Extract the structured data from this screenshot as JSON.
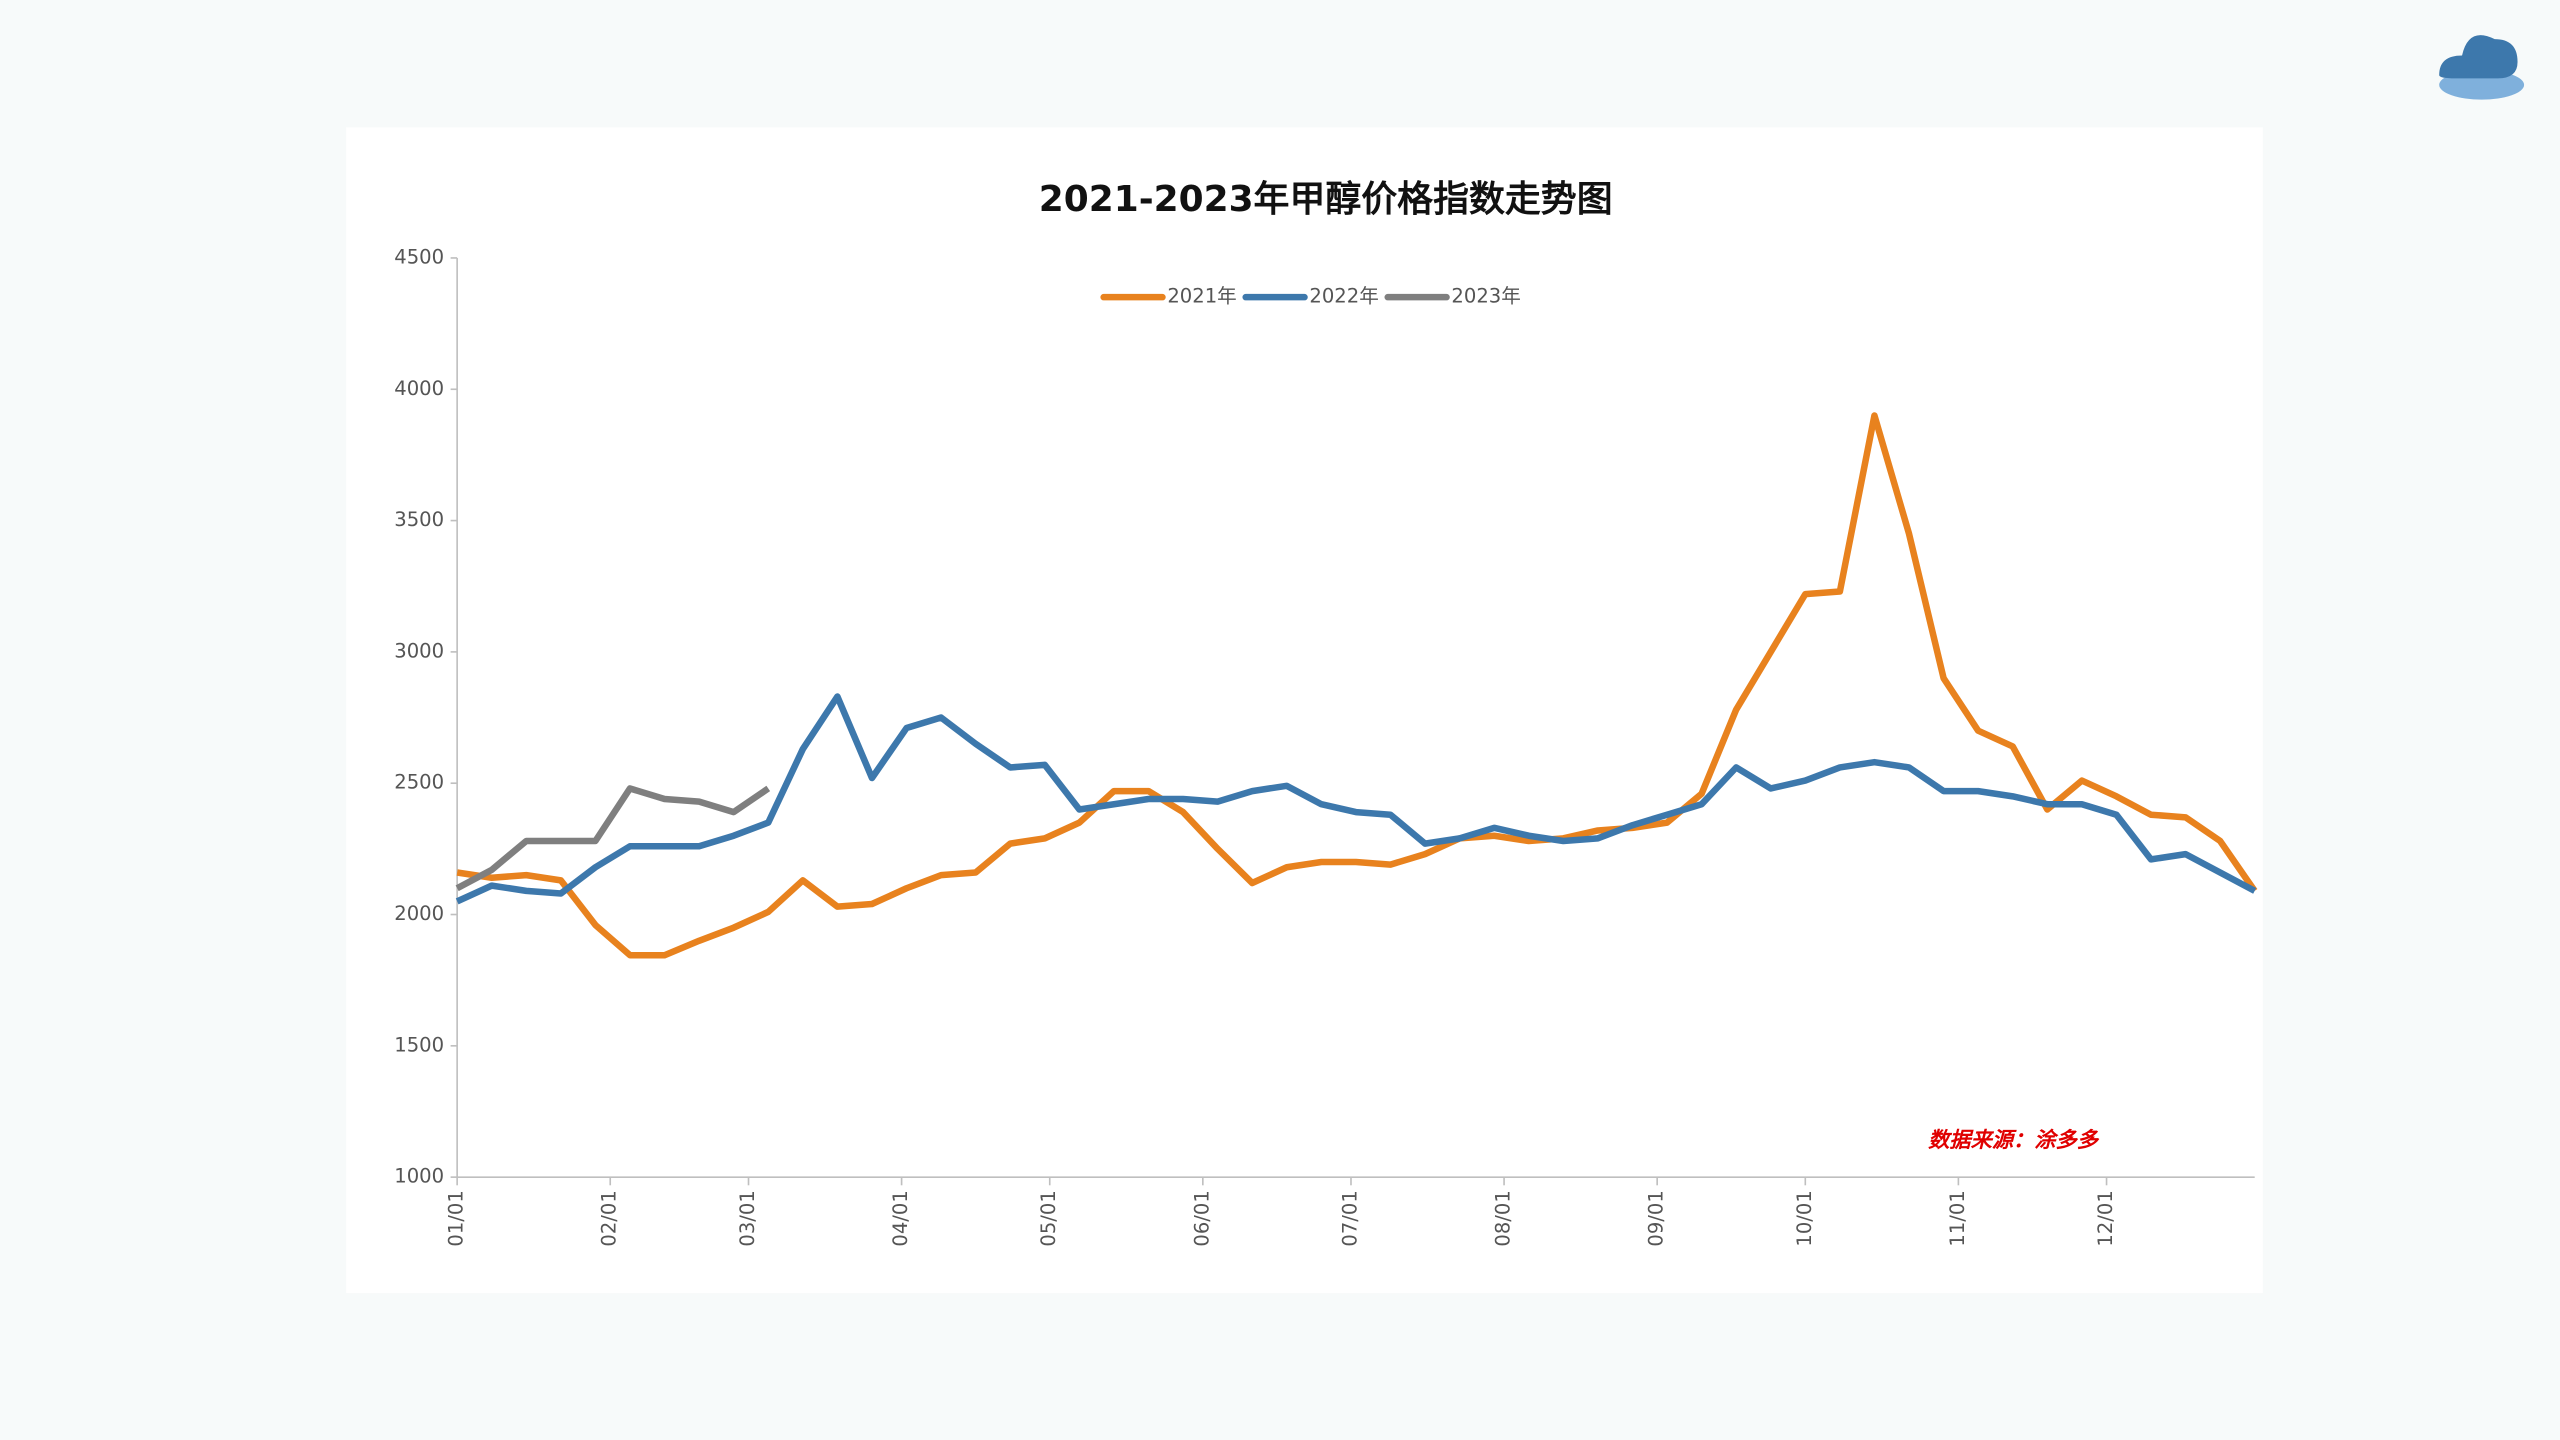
{
  "chart_data": {
    "type": "line",
    "title": "2021-2023年甲醇价格指数走势图",
    "source": "数据来源：涂多多",
    "x": [
      0,
      7,
      14,
      21,
      28,
      35,
      42,
      49,
      56,
      63,
      70,
      77,
      84,
      91,
      98,
      105,
      112,
      119,
      126,
      133,
      140,
      147,
      154,
      161,
      168,
      175,
      182,
      189,
      196,
      203,
      210,
      217,
      224,
      231,
      238,
      245,
      252,
      259,
      266,
      273,
      280,
      287,
      294,
      301,
      308,
      315,
      322,
      329,
      336,
      343,
      350,
      357,
      364
    ],
    "xlim": [
      0,
      364
    ],
    "xticks": [
      {
        "value": 0,
        "label": "01/01"
      },
      {
        "value": 31,
        "label": "02/01"
      },
      {
        "value": 59,
        "label": "03/01"
      },
      {
        "value": 90,
        "label": "04/01"
      },
      {
        "value": 120,
        "label": "05/01"
      },
      {
        "value": 151,
        "label": "06/01"
      },
      {
        "value": 181,
        "label": "07/01"
      },
      {
        "value": 212,
        "label": "08/01"
      },
      {
        "value": 243,
        "label": "09/01"
      },
      {
        "value": 273,
        "label": "10/01"
      },
      {
        "value": 304,
        "label": "11/01"
      },
      {
        "value": 334,
        "label": "12/01"
      }
    ],
    "ylim": [
      1000,
      4500
    ],
    "yticks": [
      1000,
      1500,
      2000,
      2500,
      3000,
      3500,
      4000,
      4500
    ],
    "legend": "top",
    "series": [
      {
        "name": "2021年",
        "color": "#e8821e",
        "values": [
          2160,
          2140,
          2150,
          2130,
          1960,
          1845,
          1845,
          1900,
          1950,
          2010,
          2130,
          2030,
          2040,
          2100,
          2150,
          2160,
          2270,
          2290,
          2350,
          2470,
          2470,
          2390,
          2250,
          2120,
          2180,
          2200,
          2200,
          2190,
          2230,
          2290,
          2300,
          2280,
          2290,
          2320,
          2330,
          2350,
          2460,
          2780,
          3000,
          3220,
          3230,
          3900,
          3450,
          2900,
          2700,
          2640,
          2400,
          2510,
          2450,
          2380,
          2370,
          2280,
          2090
        ]
      },
      {
        "name": "2022年",
        "color": "#3d78ac",
        "values": [
          2050,
          2110,
          2090,
          2080,
          2180,
          2260,
          2260,
          2260,
          2300,
          2350,
          2630,
          2830,
          2520,
          2710,
          2750,
          2650,
          2560,
          2570,
          2400,
          2420,
          2440,
          2440,
          2430,
          2470,
          2490,
          2420,
          2390,
          2380,
          2270,
          2290,
          2330,
          2300,
          2280,
          2290,
          2340,
          2380,
          2420,
          2560,
          2480,
          2510,
          2560,
          2580,
          2560,
          2470,
          2470,
          2450,
          2420,
          2420,
          2380,
          2210,
          2230,
          2160,
          2090
        ]
      },
      {
        "name": "2023年",
        "color": "#7f7f7f",
        "values": [
          2100,
          2170,
          2280,
          2280,
          2280,
          2480,
          2440,
          2430,
          2390,
          2480,
          null,
          null,
          null,
          null,
          null,
          null,
          null,
          null,
          null,
          null,
          null,
          null,
          null,
          null,
          null,
          null,
          null,
          null,
          null,
          null,
          null,
          null,
          null,
          null,
          null,
          null,
          null,
          null,
          null,
          null,
          null,
          null,
          null,
          null,
          null,
          null,
          null,
          null,
          null,
          null,
          null,
          null,
          null
        ]
      }
    ]
  }
}
